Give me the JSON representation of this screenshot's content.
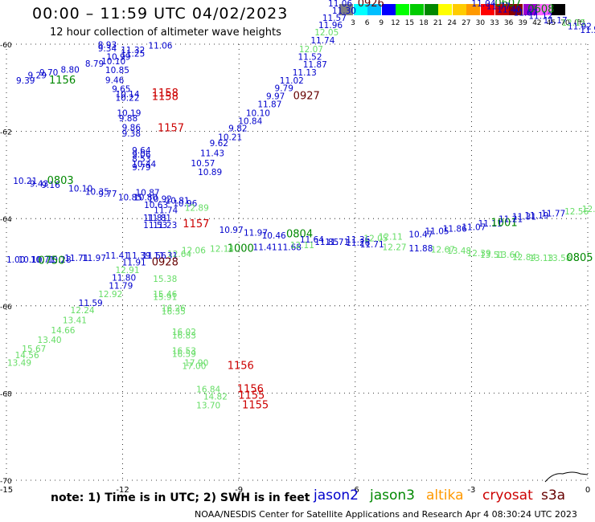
{
  "header": {
    "title": "00:00 – 11:59 UTC 04/02/2023",
    "subtitle": "12 hour collection of altimeter wave heights"
  },
  "legend": {
    "labels": [
      "3",
      "6",
      "9",
      "12",
      "15",
      "18",
      "21",
      "24",
      "27",
      "30",
      "33",
      "36",
      "39",
      "42",
      "45",
      "70"
    ],
    "unit": "(ft)",
    "colors": [
      "#808080",
      "#00ffff",
      "#00bfff",
      "#0000ff",
      "#00ff00",
      "#00cc00",
      "#008800",
      "#ffff00",
      "#ffcc00",
      "#ff9900",
      "#ff0000",
      "#cc0000",
      "#880000",
      "#9900cc",
      "#ff66ff",
      "#000000"
    ]
  },
  "axes": {
    "y_ticks": [
      {
        "label": "-60",
        "v": -60
      },
      {
        "label": "-62",
        "v": -62
      },
      {
        "label": "-64",
        "v": -64
      },
      {
        "label": "-66",
        "v": -66
      },
      {
        "label": "-68",
        "v": -68
      },
      {
        "label": "-70",
        "v": -70
      }
    ],
    "x_ticks": [
      {
        "label": "-15",
        "v": -15
      },
      {
        "label": "-12",
        "v": -12
      },
      {
        "label": "-9",
        "v": -9
      },
      {
        "label": "-6",
        "v": -6
      },
      {
        "label": "-3",
        "v": -3
      },
      {
        "label": "0",
        "v": 0
      }
    ]
  },
  "colors": {
    "jason2": "#0000cc",
    "jason3": "#008800",
    "altika": "#ff9900",
    "cryosat": "#cc0000",
    "s3a": "#660000",
    "light": "#66dd66"
  },
  "observations": [
    {
      "t": "8.93",
      "c": "#0000cc",
      "lon": -12.64,
      "lat": -60.08
    },
    {
      "t": "9.34",
      "c": "#0000cc",
      "lon": -12.64,
      "lat": -60.17
    },
    {
      "t": "11.32",
      "c": "#0000cc",
      "lon": -12.05,
      "lat": -60.2
    },
    {
      "t": "11.06",
      "c": "#0000cc",
      "lon": -11.34,
      "lat": -60.1
    },
    {
      "t": "11.25",
      "c": "#0000cc",
      "lon": -12.05,
      "lat": -60.29
    },
    {
      "t": "10.99",
      "c": "#0000cc",
      "lon": -12.42,
      "lat": -60.36
    },
    {
      "t": "10.10",
      "c": "#0000cc",
      "lon": -12.55,
      "lat": -60.46
    },
    {
      "t": "8.79",
      "c": "#0000cc",
      "lon": -12.97,
      "lat": -60.52
    },
    {
      "t": "8.80",
      "c": "#0000cc",
      "lon": -13.6,
      "lat": -60.65
    },
    {
      "t": "9.70",
      "c": "#0000cc",
      "lon": -14.15,
      "lat": -60.72
    },
    {
      "t": "9.29",
      "c": "#0000cc",
      "lon": -14.45,
      "lat": -60.78
    },
    {
      "t": "9.39",
      "c": "#0000cc",
      "lon": -14.75,
      "lat": -60.9
    },
    {
      "t": "1156",
      "c": "#008800",
      "lon": -13.9,
      "lat": -60.9
    },
    {
      "t": "10.85",
      "c": "#0000cc",
      "lon": -12.45,
      "lat": -60.66
    },
    {
      "t": "9.46",
      "c": "#0000cc",
      "lon": -12.45,
      "lat": -60.89
    },
    {
      "t": "9.65",
      "c": "#0000cc",
      "lon": -12.28,
      "lat": -61.1
    },
    {
      "t": "10.14",
      "c": "#0000cc",
      "lon": -12.19,
      "lat": -61.22
    },
    {
      "t": "10.22",
      "c": "#0000cc",
      "lon": -12.19,
      "lat": -61.3
    },
    {
      "t": "1158",
      "c": "#cc0000",
      "lon": -11.25,
      "lat": -61.2
    },
    {
      "t": "1158",
      "c": "#cc0000",
      "lon": -11.25,
      "lat": -61.28
    },
    {
      "t": "10.19",
      "c": "#0000cc",
      "lon": -12.15,
      "lat": -61.65
    },
    {
      "t": "9.88",
      "c": "#0000cc",
      "lon": -12.1,
      "lat": -61.77
    },
    {
      "t": "9.86",
      "c": "#0000cc",
      "lon": -12.02,
      "lat": -61.98
    },
    {
      "t": "9.38",
      "c": "#0000cc",
      "lon": -12.02,
      "lat": -62.12
    },
    {
      "t": "1157",
      "c": "#cc0000",
      "lon": -11.1,
      "lat": -62.0
    },
    {
      "t": "9.64",
      "c": "#0000cc",
      "lon": -11.76,
      "lat": -62.5
    },
    {
      "t": "9.06",
      "c": "#0000cc",
      "lon": -11.76,
      "lat": -62.6
    },
    {
      "t": "8.53",
      "c": "#0000cc",
      "lon": -11.76,
      "lat": -62.7
    },
    {
      "t": "10.44",
      "c": "#0000cc",
      "lon": -11.76,
      "lat": -62.82
    },
    {
      "t": "9.79",
      "c": "#0000cc",
      "lon": -11.76,
      "lat": -62.89
    },
    {
      "t": "10.21",
      "c": "#0000cc",
      "lon": -14.83,
      "lat": -63.2
    },
    {
      "t": "9.43",
      "c": "#0000cc",
      "lon": -14.4,
      "lat": -63.27
    },
    {
      "t": "9.16",
      "c": "#0000cc",
      "lon": -14.1,
      "lat": -63.3
    },
    {
      "t": "0803",
      "c": "#008800",
      "lon": -13.95,
      "lat": -63.2
    },
    {
      "t": "10.10",
      "c": "#0000cc",
      "lon": -13.4,
      "lat": -63.38
    },
    {
      "t": "10.35",
      "c": "#0000cc",
      "lon": -12.97,
      "lat": -63.45
    },
    {
      "t": "9.77",
      "c": "#0000cc",
      "lon": -12.63,
      "lat": -63.5
    },
    {
      "t": "10.85",
      "c": "#0000cc",
      "lon": -12.12,
      "lat": -63.58
    },
    {
      "t": "10.87",
      "c": "#0000cc",
      "lon": -11.67,
      "lat": -63.47
    },
    {
      "t": "10.80",
      "c": "#0000cc",
      "lon": -11.72,
      "lat": -63.58
    },
    {
      "t": "10.92",
      "c": "#0000cc",
      "lon": -11.35,
      "lat": -63.62
    },
    {
      "t": "10.81",
      "c": "#0000cc",
      "lon": -10.9,
      "lat": -63.66
    },
    {
      "t": "10.96",
      "c": "#0000cc",
      "lon": -10.7,
      "lat": -63.72
    },
    {
      "t": "10.63",
      "c": "#0000cc",
      "lon": -11.45,
      "lat": -63.76
    },
    {
      "t": "11.74",
      "c": "#0000cc",
      "lon": -11.2,
      "lat": -63.88
    },
    {
      "t": "12.89",
      "c": "#66dd66",
      "lon": -10.4,
      "lat": -63.82
    },
    {
      "t": "11.81",
      "c": "#0000cc",
      "lon": -11.47,
      "lat": -64.05
    },
    {
      "t": "11.81",
      "c": "#0000cc",
      "lon": -11.37,
      "lat": -64.05
    },
    {
      "t": "11.53",
      "c": "#0000cc",
      "lon": -11.47,
      "lat": -64.22
    },
    {
      "t": "11.23",
      "c": "#0000cc",
      "lon": -11.22,
      "lat": -64.22
    },
    {
      "t": "1157",
      "c": "#cc0000",
      "lon": -10.45,
      "lat": -64.2
    },
    {
      "t": "11.43",
      "c": "#0000cc",
      "lon": -10.0,
      "lat": -62.57
    },
    {
      "t": "10.57",
      "c": "#0000cc",
      "lon": -10.24,
      "lat": -62.8
    },
    {
      "t": "10.89",
      "c": "#0000cc",
      "lon": -10.06,
      "lat": -63.0
    },
    {
      "t": "9.62",
      "c": "#0000cc",
      "lon": -9.76,
      "lat": -62.34
    },
    {
      "t": "10.21",
      "c": "#0000cc",
      "lon": -9.54,
      "lat": -62.2
    },
    {
      "t": "9.82",
      "c": "#0000cc",
      "lon": -9.27,
      "lat": -62.0
    },
    {
      "t": "10.84",
      "c": "#0000cc",
      "lon": -9.02,
      "lat": -61.83
    },
    {
      "t": "10.10",
      "c": "#0000cc",
      "lon": -8.82,
      "lat": -61.65
    },
    {
      "t": "11.87",
      "c": "#0000cc",
      "lon": -8.52,
      "lat": -61.45
    },
    {
      "t": "9.97",
      "c": "#0000cc",
      "lon": -8.3,
      "lat": -61.26
    },
    {
      "t": "0927",
      "c": "#660000",
      "lon": -7.6,
      "lat": -61.26
    },
    {
      "t": "9.79",
      "c": "#0000cc",
      "lon": -8.08,
      "lat": -61.08
    },
    {
      "t": "11.02",
      "c": "#0000cc",
      "lon": -7.95,
      "lat": -60.9
    },
    {
      "t": "11.13",
      "c": "#0000cc",
      "lon": -7.62,
      "lat": -60.72
    },
    {
      "t": "11.87",
      "c": "#0000cc",
      "lon": -7.35,
      "lat": -60.53
    },
    {
      "t": "11.52",
      "c": "#0000cc",
      "lon": -7.48,
      "lat": -60.36
    },
    {
      "t": "12.07",
      "c": "#66dd66",
      "lon": -7.45,
      "lat": -60.18
    },
    {
      "t": "11.74",
      "c": "#0000cc",
      "lon": -7.15,
      "lat": -59.98
    },
    {
      "t": "12.05",
      "c": "#66dd66",
      "lon": -7.05,
      "lat": -59.8
    },
    {
      "t": "11.96",
      "c": "#0000cc",
      "lon": -6.95,
      "lat": -59.63
    },
    {
      "t": "11.57",
      "c": "#0000cc",
      "lon": -6.85,
      "lat": -59.47
    },
    {
      "t": "11.30",
      "c": "#0000cc",
      "lon": -6.6,
      "lat": -59.3
    },
    {
      "t": "11.06",
      "c": "#0000cc",
      "lon": -6.7,
      "lat": -59.13
    },
    {
      "t": "0926",
      "c": "#660000",
      "lon": -5.94,
      "lat": -59.13
    },
    {
      "t": "11.04",
      "c": "#0000cc",
      "lon": -3.0,
      "lat": -59.13
    },
    {
      "t": "0607",
      "c": "#008800",
      "lon": -2.4,
      "lat": -59.13
    },
    {
      "t": "11.77",
      "c": "#0000cc",
      "lon": -2.62,
      "lat": -59.2
    },
    {
      "t": "11.40",
      "c": "#0000cc",
      "lon": -2.34,
      "lat": -59.27
    },
    {
      "t": "0608",
      "c": "#008800",
      "lon": -1.55,
      "lat": -59.27
    },
    {
      "t": "11.67",
      "c": "#0000cc",
      "lon": -1.92,
      "lat": -59.35
    },
    {
      "t": "11.12",
      "c": "#0000cc",
      "lon": -1.53,
      "lat": -59.42
    },
    {
      "t": "11.17",
      "c": "#0000cc",
      "lon": -1.15,
      "lat": -59.52
    },
    {
      "t": "12.15",
      "c": "#66dd66",
      "lon": -0.68,
      "lat": -59.58
    },
    {
      "t": "11.92",
      "c": "#0000cc",
      "lon": -0.52,
      "lat": -59.66
    },
    {
      "t": "11.5",
      "c": "#0000cc",
      "lon": -0.2,
      "lat": -59.74
    },
    {
      "t": "10.97",
      "c": "#0000cc",
      "lon": -9.51,
      "lat": -64.33
    },
    {
      "t": "11.97",
      "c": "#0000cc",
      "lon": -8.88,
      "lat": -64.39
    },
    {
      "t": "10.46",
      "c": "#0000cc",
      "lon": -8.41,
      "lat": -64.46
    },
    {
      "t": "0804",
      "c": "#008800",
      "lon": -7.78,
      "lat": -64.43
    },
    {
      "t": "11.41",
      "c": "#0000cc",
      "lon": -8.64,
      "lat": -64.72
    },
    {
      "t": "11.68",
      "c": "#0000cc",
      "lon": -8.01,
      "lat": -64.72
    },
    {
      "t": "12.11",
      "c": "#66dd66",
      "lon": -7.68,
      "lat": -64.68
    },
    {
      "t": "11.64",
      "c": "#0000cc",
      "lon": -7.43,
      "lat": -64.55
    },
    {
      "t": "11.85",
      "c": "#0000cc",
      "lon": -7.05,
      "lat": -64.6
    },
    {
      "t": "11.71",
      "c": "#0000cc",
      "lon": -6.78,
      "lat": -64.6
    },
    {
      "t": "11.36",
      "c": "#0000cc",
      "lon": -6.24,
      "lat": -64.55
    },
    {
      "t": "11.26",
      "c": "#0000cc",
      "lon": -6.24,
      "lat": -64.62
    },
    {
      "t": "11.71",
      "c": "#0000cc",
      "lon": -5.88,
      "lat": -64.66
    },
    {
      "t": "12.05",
      "c": "#66dd66",
      "lon": -5.78,
      "lat": -64.52
    },
    {
      "t": "12.11",
      "c": "#66dd66",
      "lon": -5.4,
      "lat": -64.48
    },
    {
      "t": "12.27",
      "c": "#66dd66",
      "lon": -5.3,
      "lat": -64.72
    },
    {
      "t": "10.47",
      "c": "#0000cc",
      "lon": -4.62,
      "lat": -64.43
    },
    {
      "t": "11.88",
      "c": "#0000cc",
      "lon": -4.62,
      "lat": -64.75
    },
    {
      "t": "11.05",
      "c": "#0000cc",
      "lon": -4.2,
      "lat": -64.36
    },
    {
      "t": "11.86",
      "c": "#0000cc",
      "lon": -3.74,
      "lat": -64.3
    },
    {
      "t": "11.07",
      "c": "#0000cc",
      "lon": -3.25,
      "lat": -64.26
    },
    {
      "t": "11.11",
      "c": "#0000cc",
      "lon": -2.83,
      "lat": -64.18
    },
    {
      "t": "1001",
      "c": "#008800",
      "lon": -2.5,
      "lat": -64.17
    },
    {
      "t": "11.21",
      "c": "#0000cc",
      "lon": -2.3,
      "lat": -64.08
    },
    {
      "t": "11.31",
      "c": "#0000cc",
      "lon": -1.95,
      "lat": -64.02
    },
    {
      "t": "11.19",
      "c": "#0000cc",
      "lon": -1.63,
      "lat": -64.0
    },
    {
      "t": "11.77",
      "c": "#0000cc",
      "lon": -1.2,
      "lat": -63.95
    },
    {
      "t": "12.56",
      "c": "#66dd66",
      "lon": -0.6,
      "lat": -63.9
    },
    {
      "t": "12.7",
      "c": "#66dd66",
      "lon": -0.15,
      "lat": -63.85
    },
    {
      "t": "12.67",
      "c": "#66dd66",
      "lon": -4.05,
      "lat": -64.78
    },
    {
      "t": "13.48",
      "c": "#66dd66",
      "lon": -3.63,
      "lat": -64.81
    },
    {
      "t": "12.39",
      "c": "#66dd66",
      "lon": -3.12,
      "lat": -64.86
    },
    {
      "t": "13.51",
      "c": "#66dd66",
      "lon": -2.78,
      "lat": -64.9
    },
    {
      "t": "13.60",
      "c": "#66dd66",
      "lon": -2.37,
      "lat": -64.9
    },
    {
      "t": "12.84",
      "c": "#66dd66",
      "lon": -1.95,
      "lat": -64.95
    },
    {
      "t": "13.13",
      "c": "#66dd66",
      "lon": -1.51,
      "lat": -64.97
    },
    {
      "t": "13.58",
      "c": "#66dd66",
      "lon": -1.05,
      "lat": -64.97
    },
    {
      "t": "0805",
      "c": "#008800",
      "lon": -0.55,
      "lat": -64.97
    },
    {
      "t": "1000",
      "c": "#008800",
      "lon": -9.3,
      "lat": -64.76
    },
    {
      "t": "12.14",
      "c": "#66dd66",
      "lon": -9.75,
      "lat": -64.76
    },
    {
      "t": "12.06",
      "c": "#66dd66",
      "lon": -10.48,
      "lat": -64.8
    },
    {
      "t": "12.64",
      "c": "#66dd66",
      "lon": -10.85,
      "lat": -64.88
    },
    {
      "t": "11.31",
      "c": "#0000cc",
      "lon": -11.2,
      "lat": -64.92
    },
    {
      "t": "11.56",
      "c": "#0000cc",
      "lon": -11.5,
      "lat": -64.92
    },
    {
      "t": "11.39",
      "c": "#0000cc",
      "lon": -11.9,
      "lat": -64.92
    },
    {
      "t": "11.41",
      "c": "#0000cc",
      "lon": -12.45,
      "lat": -64.92
    },
    {
      "t": "11.97",
      "c": "#0000cc",
      "lon": -13.05,
      "lat": -64.97
    },
    {
      "t": "11.71",
      "c": "#0000cc",
      "lon": -13.5,
      "lat": -64.97
    },
    {
      "t": "10.28",
      "c": "#0000cc",
      "lon": -13.95,
      "lat": -65.01
    },
    {
      "t": "10.71",
      "c": "#0000cc",
      "lon": -14.38,
      "lat": -65.01
    },
    {
      "t": "10.10",
      "c": "#0000cc",
      "lon": -14.7,
      "lat": -65.01
    },
    {
      "t": "1.00",
      "c": "#0000cc",
      "lon": -15.0,
      "lat": -65.01
    },
    {
      "t": "0750",
      "c": "#008800",
      "lon": -14.18,
      "lat": -65.04
    },
    {
      "t": "11.91",
      "c": "#0000cc",
      "lon": -12.02,
      "lat": -65.07
    },
    {
      "t": "0928",
      "c": "#660000",
      "lon": -11.25,
      "lat": -65.07
    },
    {
      "t": "12.91",
      "c": "#66dd66",
      "lon": -12.19,
      "lat": -65.25
    },
    {
      "t": "11.80",
      "c": "#0000cc",
      "lon": -12.28,
      "lat": -65.42
    },
    {
      "t": "11.79",
      "c": "#0000cc",
      "lon": -12.36,
      "lat": -65.61
    },
    {
      "t": "15.38",
      "c": "#66dd66",
      "lon": -11.22,
      "lat": -65.45
    },
    {
      "t": "12.92",
      "c": "#66dd66",
      "lon": -12.63,
      "lat": -65.8
    },
    {
      "t": "15.46",
      "c": "#66dd66",
      "lon": -11.22,
      "lat": -65.8
    },
    {
      "t": "15.91",
      "c": "#66dd66",
      "lon": -11.22,
      "lat": -65.87
    },
    {
      "t": "11.59",
      "c": "#0000cc",
      "lon": -13.14,
      "lat": -66.0
    },
    {
      "t": "16.26",
      "c": "#66dd66",
      "lon": -11.0,
      "lat": -66.12
    },
    {
      "t": "16.35",
      "c": "#66dd66",
      "lon": -11.0,
      "lat": -66.2
    },
    {
      "t": "12.24",
      "c": "#66dd66",
      "lon": -13.35,
      "lat": -66.17
    },
    {
      "t": "13.41",
      "c": "#66dd66",
      "lon": -13.55,
      "lat": -66.4
    },
    {
      "t": "14.66",
      "c": "#66dd66",
      "lon": -13.85,
      "lat": -66.63
    },
    {
      "t": "16.02",
      "c": "#66dd66",
      "lon": -10.73,
      "lat": -66.67
    },
    {
      "t": "16.83",
      "c": "#66dd66",
      "lon": -10.73,
      "lat": -66.75
    },
    {
      "t": "13.40",
      "c": "#66dd66",
      "lon": -14.2,
      "lat": -66.85
    },
    {
      "t": "15.67",
      "c": "#66dd66",
      "lon": -14.6,
      "lat": -67.05
    },
    {
      "t": "16.53",
      "c": "#66dd66",
      "lon": -10.73,
      "lat": -67.1
    },
    {
      "t": "16.59",
      "c": "#66dd66",
      "lon": -10.73,
      "lat": -67.17
    },
    {
      "t": "14.56",
      "c": "#66dd66",
      "lon": -14.78,
      "lat": -67.2
    },
    {
      "t": "13.49",
      "c": "#66dd66",
      "lon": -14.98,
      "lat": -67.38
    },
    {
      "t": "17.90",
      "c": "#66dd66",
      "lon": -10.41,
      "lat": -67.38
    },
    {
      "t": "17.00",
      "c": "#66dd66",
      "lon": -10.47,
      "lat": -67.45
    },
    {
      "t": "1156",
      "c": "#cc0000",
      "lon": -9.3,
      "lat": -67.45
    },
    {
      "t": "16.84",
      "c": "#66dd66",
      "lon": -10.1,
      "lat": -67.98
    },
    {
      "t": "1156",
      "c": "#cc0000",
      "lon": -9.05,
      "lat": -67.98
    },
    {
      "t": "14.82",
      "c": "#66dd66",
      "lon": -9.92,
      "lat": -68.15
    },
    {
      "t": "1155",
      "c": "#cc0000",
      "lon": -9.02,
      "lat": -68.13
    },
    {
      "t": "13.70",
      "c": "#66dd66",
      "lon": -10.1,
      "lat": -68.35
    },
    {
      "t": "1155",
      "c": "#cc0000",
      "lon": -8.92,
      "lat": -68.35
    }
  ],
  "footer": {
    "note": "note: 1) Time is in UTC; 2) SWH is in feet",
    "sat_jason2": "jason2",
    "sat_jason3": "jason3",
    "sat_altika": "altika",
    "sat_cryosat": "cryosat",
    "sat_s3a": "s3a",
    "credit": "NOAA/NESDIS Center for Satellite Applications and Research    Apr  4 08:30:24 UTC 2023"
  }
}
